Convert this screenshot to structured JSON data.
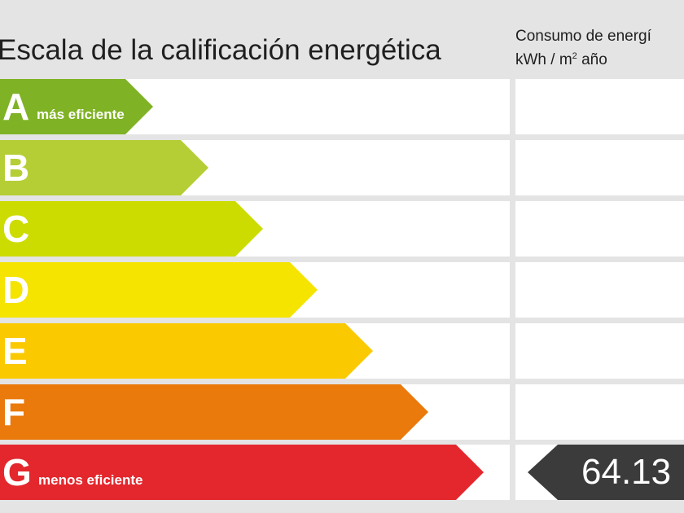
{
  "header": {
    "title": "Escala de la calificación energética",
    "consumption_line1": "Consumo de energí",
    "consumption_unit_pre": "kWh / m",
    "consumption_unit_sup": "2",
    "consumption_unit_post": " año"
  },
  "scale": [
    {
      "letter": "A",
      "note": "más eficiente",
      "color": "#7fb225"
    },
    {
      "letter": "B",
      "note": "",
      "color": "#b5ce35"
    },
    {
      "letter": "C",
      "note": "",
      "color": "#cddc00"
    },
    {
      "letter": "D",
      "note": "",
      "color": "#f4e400"
    },
    {
      "letter": "E",
      "note": "",
      "color": "#fbc900"
    },
    {
      "letter": "F",
      "note": "",
      "color": "#ea7a0c"
    },
    {
      "letter": "G",
      "note": "menos eficiente",
      "color": "#e3272d"
    }
  ],
  "current": {
    "rating": "G",
    "value": "64.13"
  }
}
